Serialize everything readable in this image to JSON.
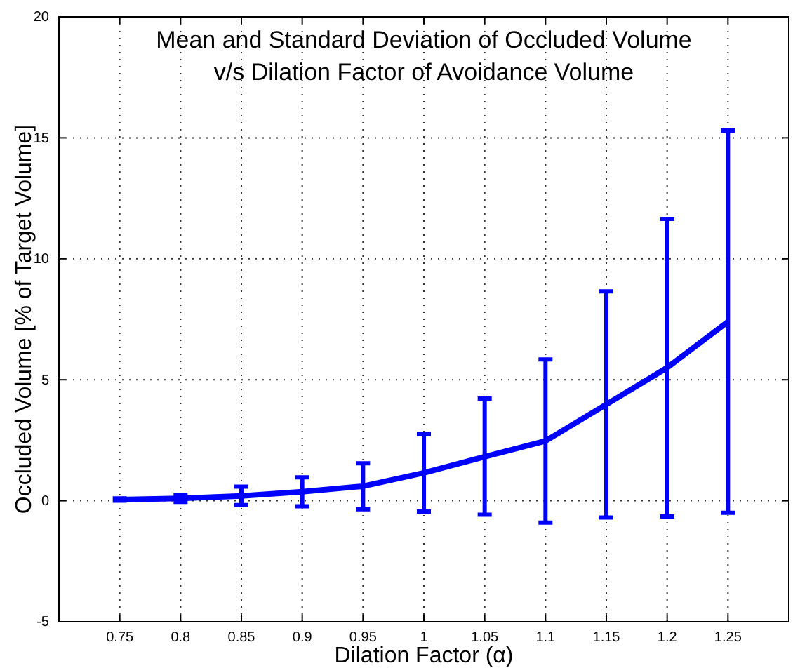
{
  "chart_data": {
    "type": "line",
    "title": "Mean and Standard Deviation of Occluded Volume\nv/s Dilation Factor of Avoidance Volume",
    "xlabel": "Dilation Factor (α)",
    "ylabel": "Occluded Volume [% of Target Volume]",
    "x": [
      0.75,
      0.8,
      0.85,
      0.9,
      0.95,
      1.0,
      1.05,
      1.1,
      1.15,
      1.2,
      1.25
    ],
    "series": [
      {
        "color": "#0000ff",
        "values": [
          0.05,
          0.1,
          0.2,
          0.37,
          0.6,
          1.15,
          1.82,
          2.47,
          3.98,
          5.5,
          7.4
        ],
        "errors": [
          0.05,
          0.15,
          0.38,
          0.6,
          0.95,
          1.6,
          2.4,
          3.37,
          4.67,
          6.15,
          7.9
        ]
      }
    ],
    "xlim": [
      0.7,
      1.3
    ],
    "xticks": [
      0.75,
      0.8,
      0.85,
      0.9,
      0.95,
      1,
      1.05,
      1.1,
      1.15,
      1.2,
      1.25
    ],
    "ylim": [
      -5,
      20
    ],
    "yticks": [
      -5,
      0,
      5,
      10,
      15,
      20
    ],
    "grid": true,
    "marker": "none",
    "line_style": "solid"
  }
}
